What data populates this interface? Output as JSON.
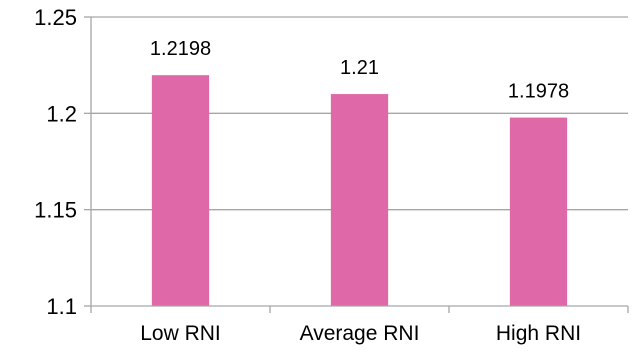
{
  "chart_data": {
    "type": "bar",
    "categories": [
      "Low RNI",
      "Average RNI",
      "High RNI"
    ],
    "values": [
      1.2198,
      1.21,
      1.1978
    ],
    "data_labels": [
      "1.2198",
      "1.21",
      "1.1978"
    ],
    "y_ticks": [
      1.1,
      1.15,
      1.2,
      1.25
    ],
    "y_tick_labels": [
      "1.1",
      "1.15",
      "1.2",
      "1.25"
    ],
    "ylim": [
      1.1,
      1.25
    ],
    "grid": true,
    "legend": "none",
    "bar_color": "#de68a8",
    "grid_color": "#a6a6a6"
  }
}
